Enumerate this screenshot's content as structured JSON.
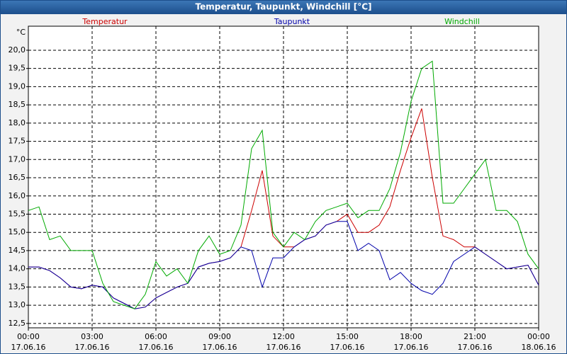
{
  "chart_data": {
    "type": "line",
    "title": "Temperatur, Taupunkt, Windchill [°C]",
    "y_label": "°C",
    "x": [
      0,
      0.5,
      1,
      1.5,
      2,
      2.5,
      3,
      3.5,
      4,
      4.5,
      5,
      5.5,
      6,
      6.5,
      7,
      7.5,
      8,
      8.5,
      9,
      9.5,
      10,
      10.5,
      11,
      11.5,
      12,
      12.5,
      13,
      13.5,
      14,
      14.5,
      15,
      15.5,
      16,
      16.5,
      17,
      17.5,
      18,
      18.5,
      19,
      19.5,
      20,
      20.5,
      21,
      21.5,
      22,
      22.5,
      23,
      23.5,
      24
    ],
    "series": [
      {
        "name": "Temperatur",
        "color": "#cc0000",
        "values": [
          14.05,
          14.05,
          13.95,
          13.75,
          13.5,
          13.45,
          13.55,
          13.5,
          13.2,
          13.05,
          12.9,
          12.95,
          13.2,
          13.35,
          13.5,
          13.6,
          14.05,
          14.15,
          14.2,
          14.3,
          14.6,
          15.6,
          16.7,
          14.9,
          14.6,
          14.6,
          14.8,
          14.9,
          15.2,
          15.3,
          15.5,
          15.0,
          15.0,
          15.2,
          15.7,
          16.7,
          17.6,
          18.4,
          16.5,
          14.9,
          14.8,
          14.6,
          14.6,
          14.4,
          14.2,
          14.0,
          14.05,
          14.1,
          13.55
        ]
      },
      {
        "name": "Taupunkt",
        "color": "#0000aa",
        "values": [
          14.05,
          14.05,
          13.95,
          13.75,
          13.5,
          13.45,
          13.55,
          13.5,
          13.2,
          13.05,
          12.9,
          12.95,
          13.2,
          13.35,
          13.5,
          13.6,
          14.05,
          14.15,
          14.2,
          14.3,
          14.6,
          14.5,
          13.5,
          14.3,
          14.3,
          14.6,
          14.8,
          14.9,
          15.2,
          15.3,
          15.3,
          14.5,
          14.7,
          14.5,
          13.7,
          13.9,
          13.6,
          13.4,
          13.3,
          13.6,
          14.2,
          14.4,
          14.6,
          14.4,
          14.2,
          14.0,
          14.05,
          14.1,
          13.55
        ]
      },
      {
        "name": "Windchill",
        "color": "#00aa00",
        "values": [
          15.6,
          15.7,
          14.8,
          14.9,
          14.5,
          14.5,
          14.5,
          13.6,
          13.1,
          13.0,
          12.9,
          13.3,
          14.2,
          13.8,
          14.0,
          13.6,
          14.5,
          14.9,
          14.4,
          14.5,
          15.2,
          17.3,
          17.8,
          15.0,
          14.6,
          15.0,
          14.8,
          15.3,
          15.6,
          15.7,
          15.8,
          15.4,
          15.6,
          15.6,
          16.2,
          17.2,
          18.6,
          19.5,
          19.7,
          15.8,
          15.8,
          16.2,
          16.6,
          17.0,
          15.6,
          15.6,
          15.3,
          14.4,
          14.0
        ]
      }
    ],
    "xlim": [
      0,
      24
    ],
    "xticks": [
      {
        "value": 0,
        "label": "00:00",
        "date": "17.06.16"
      },
      {
        "value": 3,
        "label": "03:00",
        "date": "17.06.16"
      },
      {
        "value": 6,
        "label": "06:00",
        "date": "17.06.16"
      },
      {
        "value": 9,
        "label": "09:00",
        "date": "17.06.16"
      },
      {
        "value": 12,
        "label": "12:00",
        "date": "17.06.16"
      },
      {
        "value": 15,
        "label": "15:00",
        "date": "17.06.16"
      },
      {
        "value": 18,
        "label": "18:00",
        "date": "17.06.16"
      },
      {
        "value": 21,
        "label": "21:00",
        "date": "17.06.16"
      },
      {
        "value": 24,
        "label": "00:00",
        "date": "18.06.16"
      }
    ],
    "ylim": [
      12.38,
      20.66
    ],
    "yticks": [
      {
        "value": 12.5,
        "label": "12,5"
      },
      {
        "value": 13,
        "label": "13,0"
      },
      {
        "value": 13.5,
        "label": "13,5"
      },
      {
        "value": 14,
        "label": "14,0"
      },
      {
        "value": 14.5,
        "label": "14,5"
      },
      {
        "value": 15,
        "label": "15,0"
      },
      {
        "value": 15.5,
        "label": "15,5"
      },
      {
        "value": 16,
        "label": "16,0"
      },
      {
        "value": 16.5,
        "label": "16,5"
      },
      {
        "value": 17,
        "label": "17,0"
      },
      {
        "value": 17.5,
        "label": "17,5"
      },
      {
        "value": 18,
        "label": "18,0"
      },
      {
        "value": 18.5,
        "label": "18,5"
      },
      {
        "value": 19,
        "label": "19,0"
      },
      {
        "value": 19.5,
        "label": "19,5"
      },
      {
        "value": 20,
        "label": "20,0"
      }
    ],
    "grid": true
  }
}
